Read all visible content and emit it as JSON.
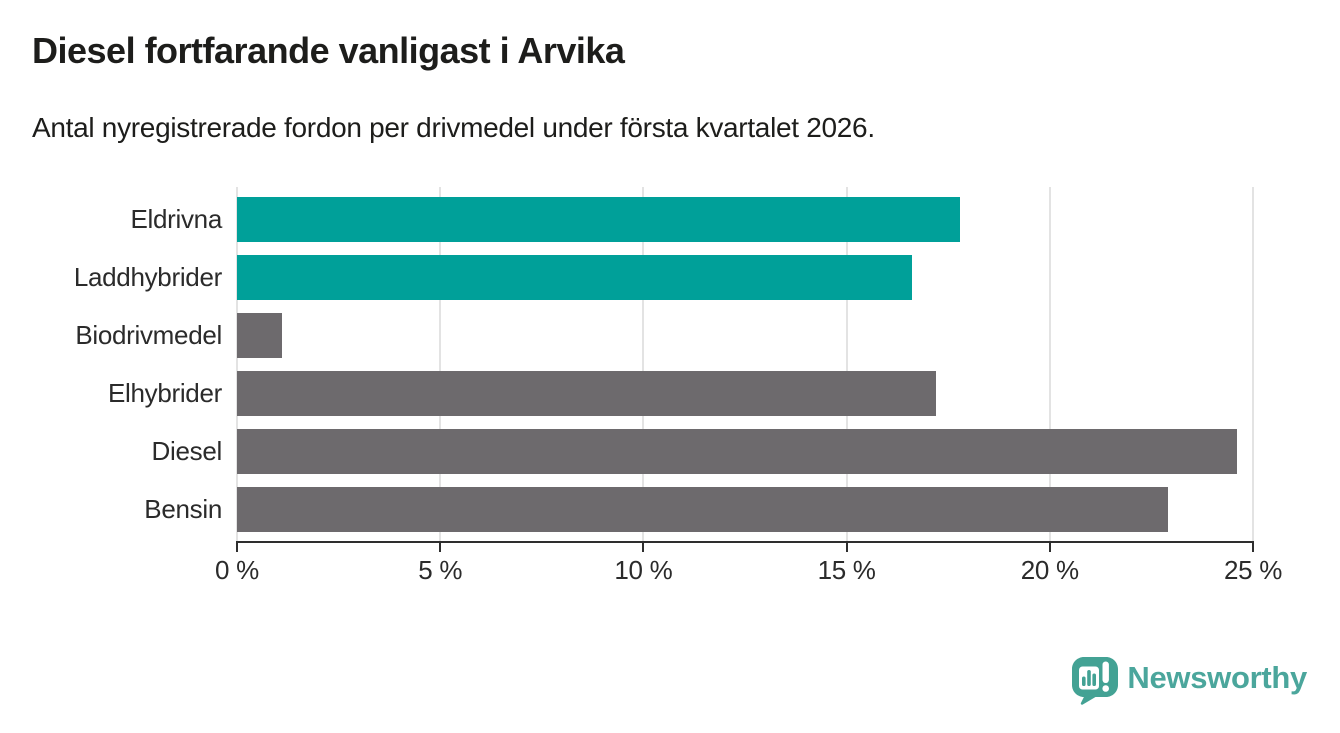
{
  "header": {
    "title": "Diesel fortfarande vanligast i Arvika",
    "subtitle": "Antal nyregistrerade fordon per drivmedel under första kvartalet 2026."
  },
  "chart_data": {
    "type": "bar",
    "orientation": "horizontal",
    "title": "Diesel fortfarande vanligast i Arvika",
    "subtitle": "Antal nyregistrerade fordon per drivmedel under första kvartalet 2026.",
    "categories": [
      "Eldrivna",
      "Laddhybrider",
      "Biodrivmedel",
      "Elhybrider",
      "Diesel",
      "Bensin"
    ],
    "values": [
      17.8,
      16.6,
      1.1,
      17.2,
      24.6,
      22.9
    ],
    "unit": "%",
    "bar_colors": [
      "#00a099",
      "#00a099",
      "#6d6a6d",
      "#6d6a6d",
      "#6d6a6d",
      "#6d6a6d"
    ],
    "x_axis": {
      "min": 0,
      "max": 25,
      "ticks": [
        0,
        5,
        10,
        15,
        20,
        25
      ],
      "tick_labels": [
        "0 %",
        "5 %",
        "10 %",
        "15 %",
        "20 %",
        "25 %"
      ]
    },
    "grid": true,
    "legend": false,
    "xlabel": "",
    "ylabel": ""
  },
  "footer": {
    "brand": "Newsworthy",
    "brand_color": "#4ba69c",
    "logo_color": "#43a294",
    "logo_inner": "#ffffff"
  },
  "colors": {
    "background": "#ffffff",
    "accent_teal": "#00a099",
    "bar_gray": "#6d6a6d",
    "gridline": "#e3e3e3",
    "axis": "#2e2e2e",
    "title_text": "#1d1d1b",
    "label_text": "#2b2b2b"
  }
}
